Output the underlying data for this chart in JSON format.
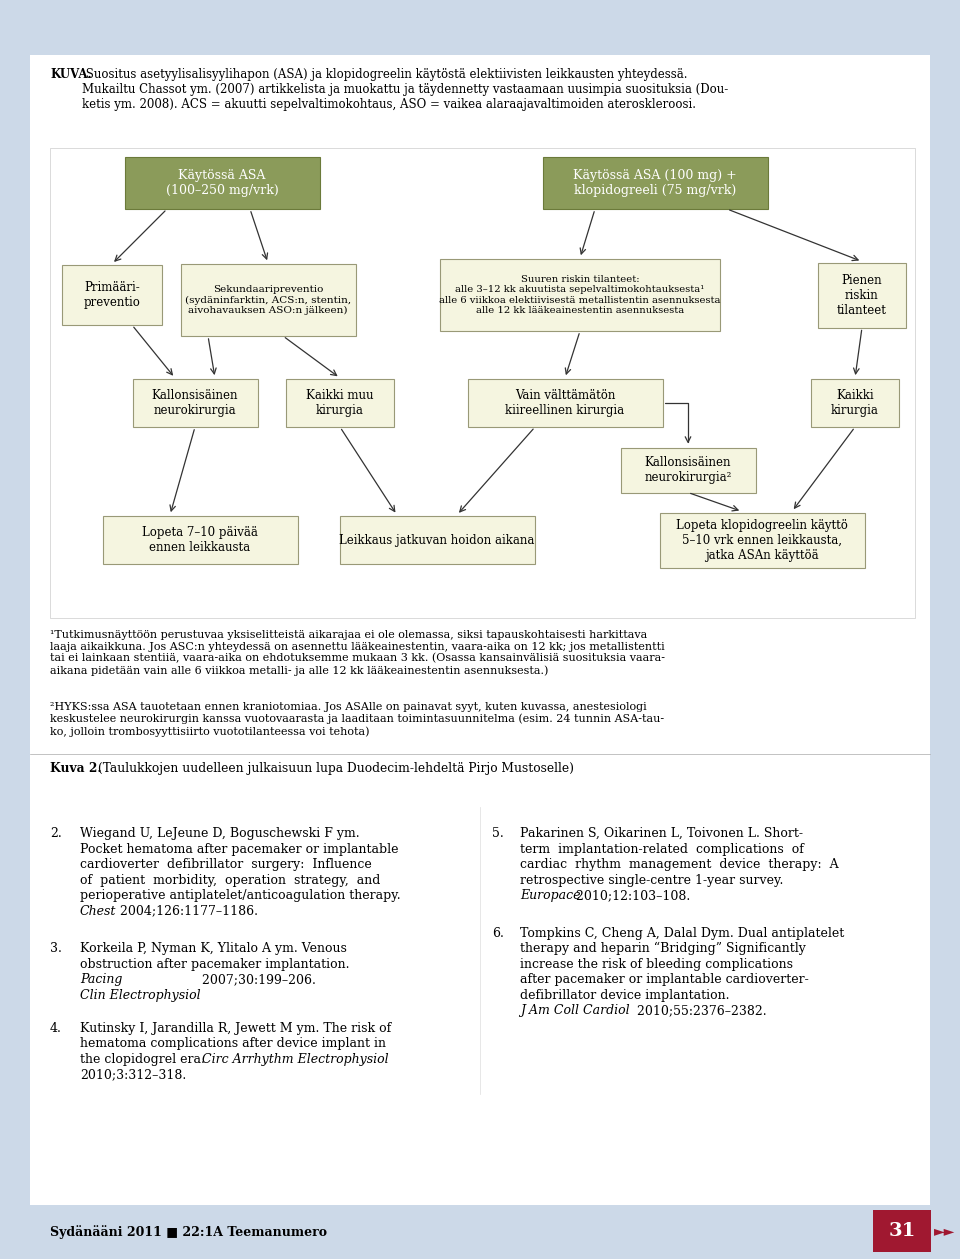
{
  "light_blue_bg": "#ccd9e8",
  "white_bg": "#ffffff",
  "header_box_bg": "#8b9b5a",
  "header_box_border": "#6b7a3a",
  "box_bg": "#f5f5e0",
  "box_border": "#999977",
  "arrow_color": "#333333",
  "text_color": "#111111",
  "footer_bg": "#a01830",
  "kuva_bold": "KUVA.",
  "kuva_rest": " Suositus asetyylisalisyylihapon (ASA) ja klopidogreelin käytöstä elektiivisten leikkausten yhteydessä.\nMukailtu Chassot ym. (2007) artikkelista ja muokattu ja täydennetty vastaamaan uusimpia suosituksia (Dou-\nketis ym. 2008). ACS = akuutti sepelvaltimokohtaus, ASO = vaikea alaraajavaltimoiden ateroskleroosi.",
  "fn1": "¹Tutkimusnäyttöön perustuvaa yksiselitteistä aikarajaa ei ole olemassa, siksi tapauskohtaisesti harkittava\nlaaja aikaikkuna. Jos ASC:n yhteydessä on asennettu lääkeainestentin, vaara-aika on 12 kk; jos metallistentti\ntai ei lainkaan stentiiä, vaara-aika on ehdotuksemme mukaan 3 kk. (Osassa kansainvälisiä suosituksia vaara-\naikana pidetään vain alle 6 viikkoa metalli- ja alle 12 kk lääkeainestentin asennuksesta.)",
  "fn2": "²HYKS:ssa ASA tauotetaan ennen kraniotomiaa. Jos ASAlle on painavat syyt, kuten kuvassa, anestesiologi\nkeskustelee neurokirurgin kanssa vuotovaarasta ja laaditaan toimintasuunnitelma (esim. 24 tunnin ASA-tau-\nko, jolloin trombosyyttisiirto vuototilanteessa voi tehota)",
  "kuva2": "Kuva 2.",
  "kuva2_rest": " (Taulukkojen uudelleen julkaisuun lupa Duodecim-lehdeltä Pirjo Mustoselle)",
  "footer_left": "Sydänääni 2011 ■ 22:1A Teemanumero",
  "footer_num": "31"
}
